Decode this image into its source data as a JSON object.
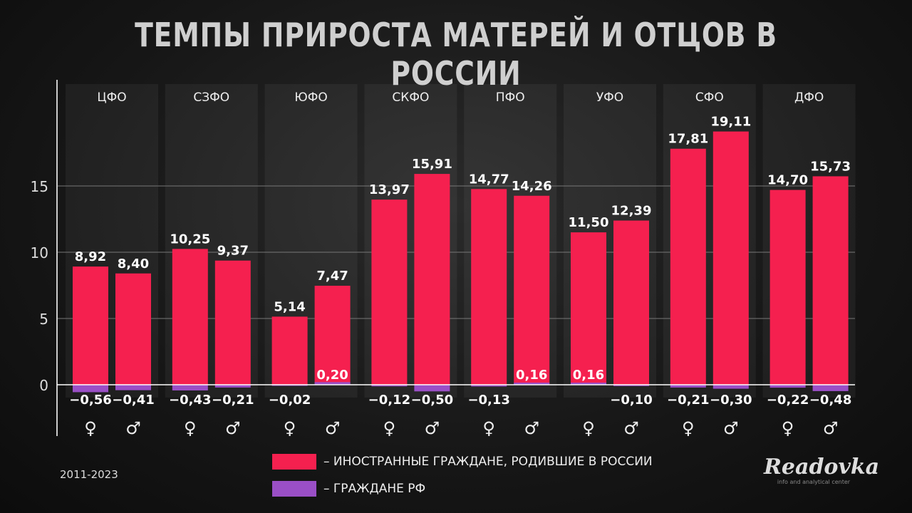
{
  "title": "ТЕМПЫ ПРИРОСТА МАТЕРЕЙ И ОТЦОВ В РОССИИ",
  "period": "2011-2023",
  "logo": {
    "name": "Readovka",
    "tagline": "info and analytical center"
  },
  "colors": {
    "foreign": "#f5204f",
    "citizens": "#9a4fc6"
  },
  "chart_data": {
    "type": "bar",
    "categories": [
      "ЦФО",
      "СЗФО",
      "ЮФО",
      "СКФО",
      "ПФО",
      "УФО",
      "СФО",
      "ДФО"
    ],
    "sub_categories": [
      "♀",
      "♂"
    ],
    "yticks": [
      0,
      5,
      10,
      15
    ],
    "ylim": [
      -3,
      23
    ],
    "grid": true,
    "legend_position": "bottom",
    "series": [
      {
        "name": "– ИНОСТРАННЫЕ ГРАЖДАНЕ, РОДИВШИЕ В РОССИИ",
        "values": [
          [
            8.92,
            8.4
          ],
          [
            10.25,
            9.37
          ],
          [
            5.14,
            7.47
          ],
          [
            13.97,
            15.91
          ],
          [
            14.77,
            14.26
          ],
          [
            11.5,
            12.39
          ],
          [
            17.81,
            19.11
          ],
          [
            14.7,
            15.73
          ]
        ]
      },
      {
        "name": "– ГРАЖДАНЕ РФ",
        "values": [
          [
            -0.56,
            -0.41
          ],
          [
            -0.43,
            -0.21
          ],
          [
            -0.02,
            0.2
          ],
          [
            -0.12,
            -0.5
          ],
          [
            -0.13,
            0.16
          ],
          [
            0.16,
            -0.1
          ],
          [
            -0.21,
            -0.3
          ],
          [
            -0.22,
            -0.48
          ]
        ]
      }
    ]
  }
}
